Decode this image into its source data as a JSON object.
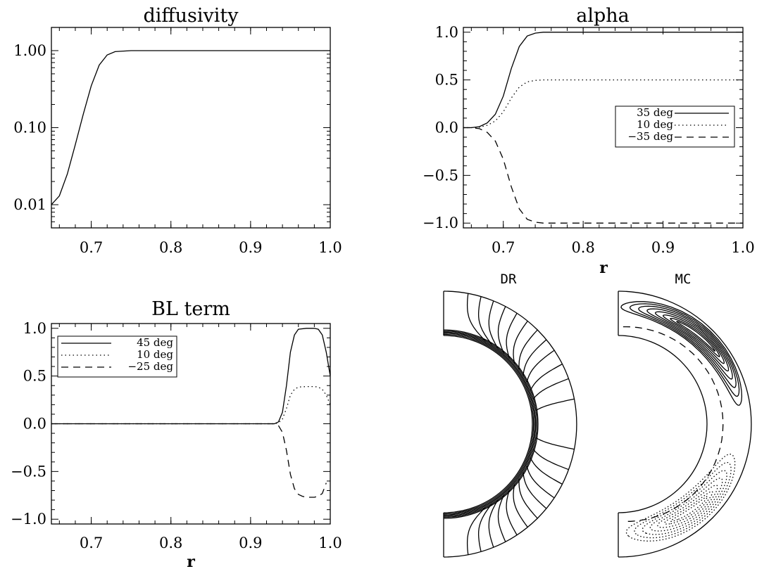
{
  "chart_data": [
    {
      "type": "line",
      "title": "diffusivity",
      "xlabel": "",
      "ylabel": "",
      "xlim": [
        0.65,
        1.0
      ],
      "ylim": [
        0.005,
        2.0
      ],
      "y_scale": "log",
      "x_ticks": [
        "0.7",
        "0.8",
        "0.9",
        "1.0"
      ],
      "y_ticks": [
        "0.01",
        "0.10",
        "1.00"
      ],
      "series": [
        {
          "name": "",
          "style": "solid",
          "x": [
            0.65,
            0.66,
            0.67,
            0.68,
            0.69,
            0.7,
            0.71,
            0.72,
            0.73,
            0.75,
            0.8,
            0.9,
            1.0
          ],
          "y": [
            0.01,
            0.013,
            0.025,
            0.06,
            0.15,
            0.35,
            0.65,
            0.88,
            0.97,
            1.0,
            1.0,
            1.0,
            1.0
          ]
        }
      ]
    },
    {
      "type": "line",
      "title": "alpha",
      "xlabel": "r",
      "ylabel": "",
      "xlim": [
        0.65,
        1.0
      ],
      "ylim": [
        -1.05,
        1.05
      ],
      "x_ticks": [
        "0.7",
        "0.8",
        "0.9",
        "1.0"
      ],
      "y_ticks": [
        "1.0",
        "0.5",
        "0.0",
        "−0.5",
        "−1.0"
      ],
      "legend_position": "right",
      "series": [
        {
          "name": "35 deg",
          "style": "solid",
          "x": [
            0.65,
            0.66,
            0.67,
            0.68,
            0.69,
            0.7,
            0.71,
            0.72,
            0.73,
            0.74,
            0.75,
            0.8,
            0.9,
            1.0
          ],
          "y": [
            0.0,
            0.0,
            0.01,
            0.05,
            0.14,
            0.33,
            0.62,
            0.85,
            0.96,
            0.99,
            1.0,
            1.0,
            1.0,
            1.0
          ]
        },
        {
          "name": "10 deg",
          "style": "dotted",
          "x": [
            0.65,
            0.66,
            0.67,
            0.68,
            0.69,
            0.7,
            0.71,
            0.72,
            0.73,
            0.74,
            0.75,
            0.8,
            0.9,
            1.0
          ],
          "y": [
            0.0,
            0.0,
            0.005,
            0.025,
            0.07,
            0.165,
            0.31,
            0.425,
            0.48,
            0.495,
            0.5,
            0.5,
            0.5,
            0.5
          ]
        },
        {
          "name": "−35 deg",
          "style": "dashed",
          "x": [
            0.65,
            0.66,
            0.67,
            0.68,
            0.69,
            0.7,
            0.71,
            0.72,
            0.73,
            0.74,
            0.75,
            0.8,
            0.9,
            1.0
          ],
          "y": [
            0.0,
            0.0,
            -0.01,
            -0.05,
            -0.14,
            -0.33,
            -0.62,
            -0.85,
            -0.96,
            -0.99,
            -1.0,
            -1.0,
            -1.0,
            -1.0
          ]
        }
      ]
    },
    {
      "type": "line",
      "title": "BL term",
      "xlabel": "r",
      "ylabel": "",
      "xlim": [
        0.65,
        1.0
      ],
      "ylim": [
        -1.05,
        1.05
      ],
      "x_ticks": [
        "0.7",
        "0.8",
        "0.9",
        "1.0"
      ],
      "y_ticks": [
        "1.0",
        "0.5",
        "0.0",
        "−0.5",
        "−1.0"
      ],
      "legend_position": "top-left",
      "series": [
        {
          "name": "45 deg",
          "style": "solid",
          "x": [
            0.65,
            0.93,
            0.935,
            0.94,
            0.945,
            0.95,
            0.955,
            0.96,
            0.97,
            0.98,
            0.985,
            0.99,
            0.995,
            1.0
          ],
          "y": [
            0.0,
            0.0,
            0.02,
            0.12,
            0.4,
            0.75,
            0.93,
            0.99,
            1.0,
            1.0,
            0.99,
            0.93,
            0.75,
            0.5
          ]
        },
        {
          "name": "10 deg",
          "style": "dotted",
          "x": [
            0.65,
            0.93,
            0.935,
            0.94,
            0.945,
            0.95,
            0.955,
            0.96,
            0.97,
            0.98,
            0.985,
            0.99,
            0.995,
            1.0
          ],
          "y": [
            0.0,
            0.0,
            0.01,
            0.05,
            0.16,
            0.3,
            0.36,
            0.385,
            0.39,
            0.39,
            0.385,
            0.36,
            0.3,
            0.2
          ]
        },
        {
          "name": "−25 deg",
          "style": "dashed",
          "x": [
            0.65,
            0.93,
            0.935,
            0.94,
            0.945,
            0.95,
            0.955,
            0.96,
            0.965,
            0.97,
            0.98,
            0.985,
            0.99,
            0.995
          ],
          "y": [
            0.0,
            0.0,
            -0.02,
            -0.09,
            -0.28,
            -0.53,
            -0.68,
            -0.74,
            -0.76,
            -0.77,
            -0.77,
            -0.76,
            -0.73,
            -0.62
          ]
        }
      ]
    },
    {
      "type": "contour",
      "title": "DR"
    },
    {
      "type": "contour",
      "title": "MC"
    }
  ]
}
